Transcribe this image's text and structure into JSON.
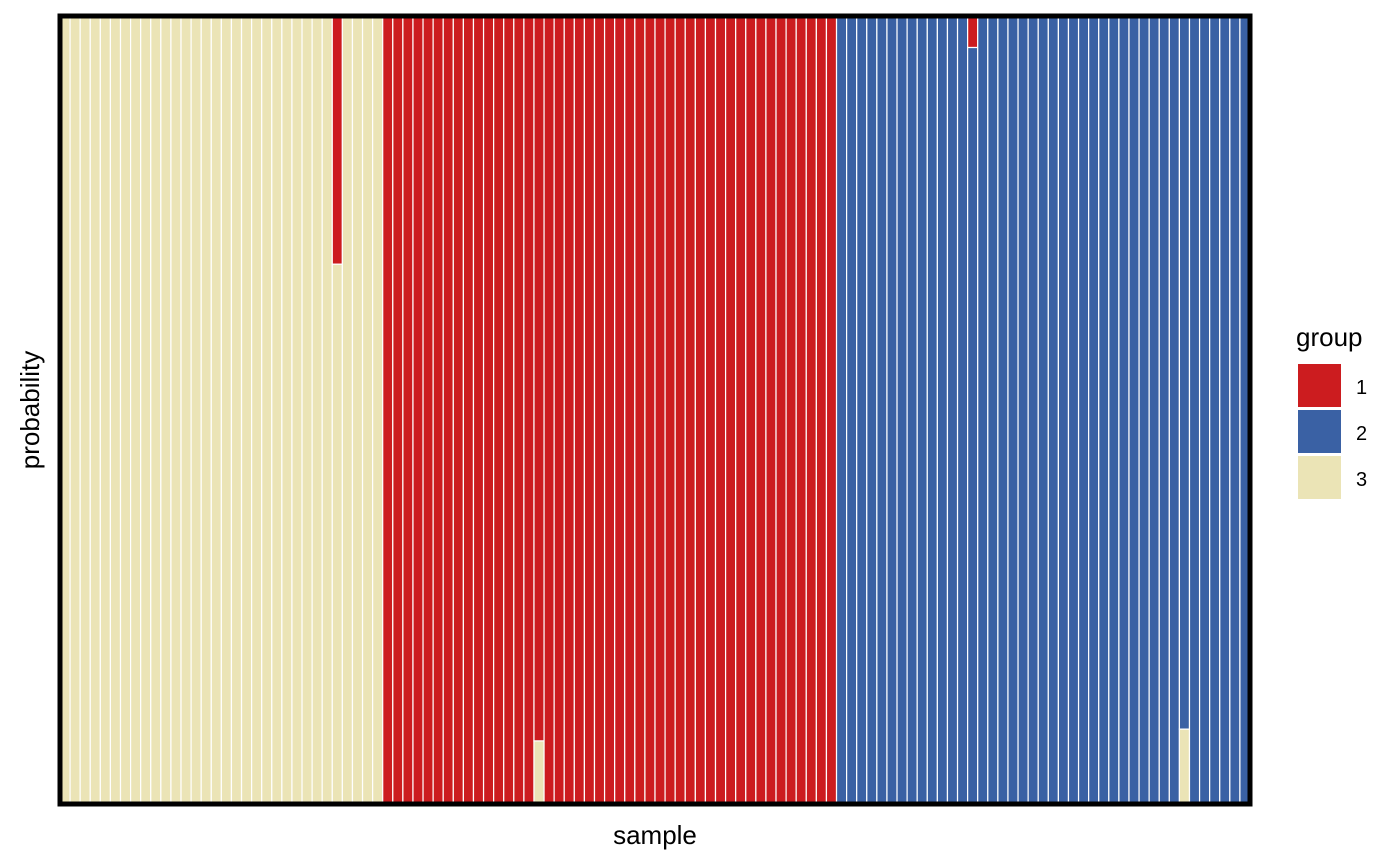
{
  "chart_data": {
    "type": "bar",
    "stacked": true,
    "xlabel": "sample",
    "ylabel": "probability",
    "ylim": [
      0,
      1
    ],
    "grid": false,
    "legend": {
      "title": "group",
      "position": "right",
      "entries": [
        {
          "name": "1",
          "color": "#CC1C1F"
        },
        {
          "name": "2",
          "color": "#3A61A4"
        },
        {
          "name": "3",
          "color": "#EBE4B6"
        }
      ]
    },
    "sample_count": 118,
    "stack_order_top_to_bottom": [
      "1",
      "2",
      "3"
    ],
    "default_membership": [
      {
        "group": "3",
        "samples": 32
      },
      {
        "group": "1",
        "samples": 45
      },
      {
        "group": "2",
        "samples": 41
      }
    ],
    "mixed_samples": [
      {
        "sample": 28,
        "probabilities": {
          "1": 0.315,
          "2": 0,
          "3": 0.685
        }
      },
      {
        "sample": 48,
        "probabilities": {
          "1": 0.92,
          "2": 0,
          "3": 0.08
        }
      },
      {
        "sample": 91,
        "probabilities": {
          "1": 0.04,
          "2": 0.96,
          "3": 0
        }
      },
      {
        "sample": 112,
        "probabilities": {
          "1": 0,
          "2": 0.905,
          "3": 0.095
        }
      }
    ]
  }
}
